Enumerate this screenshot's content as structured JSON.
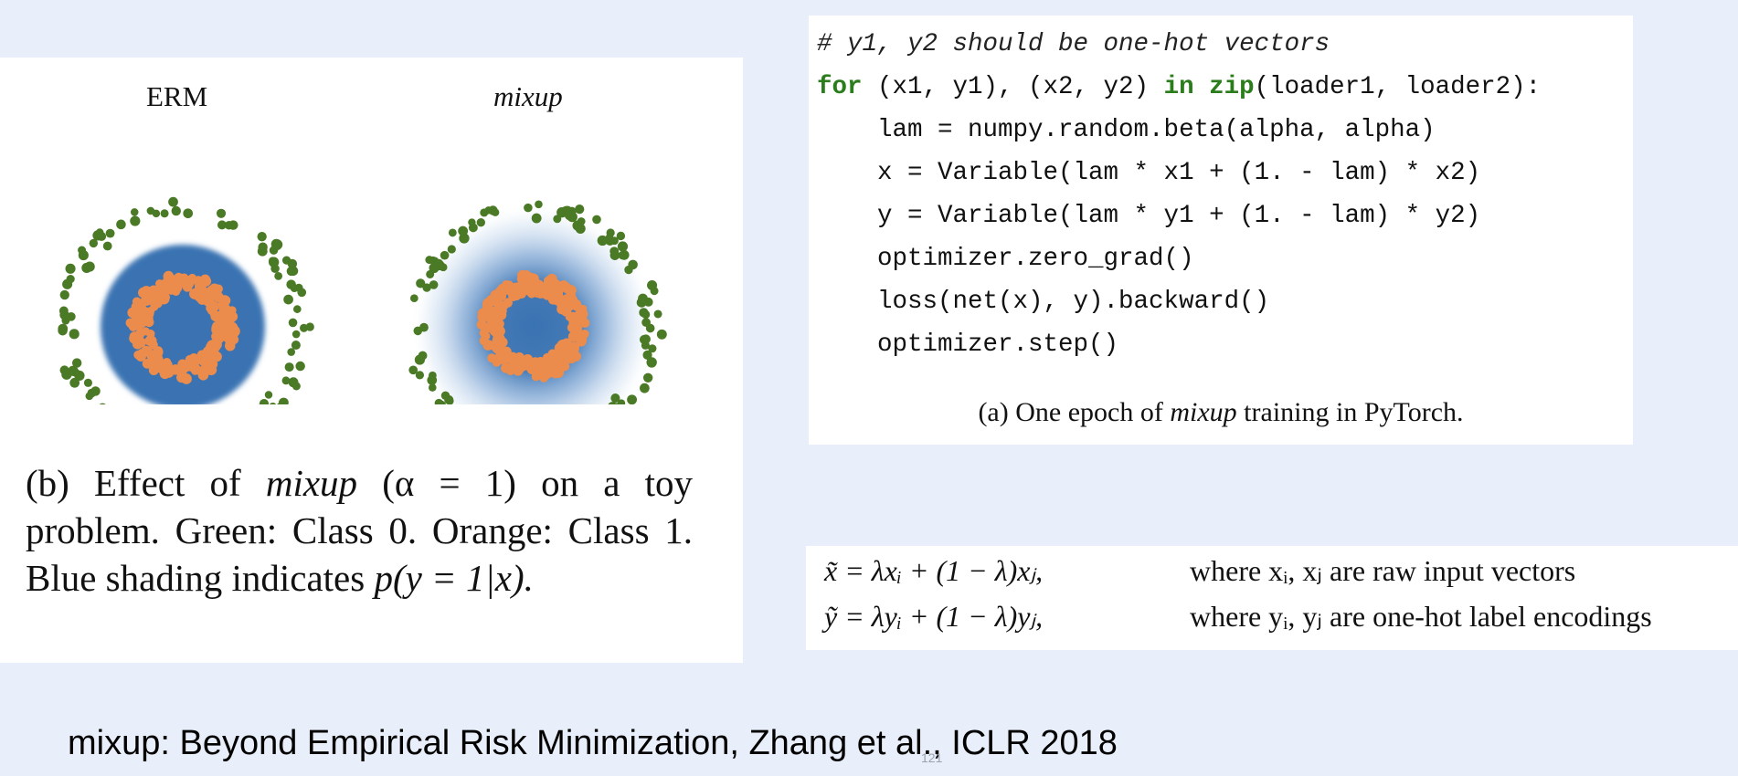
{
  "figure_b": {
    "erm_title": "ERM",
    "mixup_title": "mixup",
    "caption": {
      "prefix": "(b) Effect of ",
      "mixup_word": "mixup",
      "rest": " (α = 1) on a toy problem. Green: Class 0. Orange: Class 1. Blue shading indicates ",
      "formula": "p(y = 1|x).",
      "tail": ""
    },
    "colors": {
      "class0": "#4a7a25",
      "class1": "#ec8c4c",
      "shading": "#3a73b2"
    }
  },
  "code_block": {
    "lines": [
      "# y1, y2 should be one-hot vectors",
      "for (x1, y1), (x2, y2) in zip(loader1, loader2):",
      "    lam = numpy.random.beta(alpha, alpha)",
      "    x = Variable(lam * x1 + (1. - lam) * x2)",
      "    y = Variable(lam * y1 + (1. - lam) * y2)",
      "    optimizer.zero_grad()",
      "    loss(net(x), y).backward()",
      "    optimizer.step()"
    ],
    "caption_prefix": "(a) One epoch of ",
    "caption_mixup": "mixup",
    "caption_suffix": " training in PyTorch."
  },
  "equations": {
    "eq1_lhs": "x̃ = λxᵢ + (1 − λ)xⱼ,",
    "eq1_rhs": "where xᵢ, xⱼ are raw input vectors",
    "eq2_lhs": "ỹ = λyᵢ + (1 − λ)yⱼ,",
    "eq2_rhs": "where yᵢ, yⱼ are one-hot label encodings"
  },
  "citation": "mixup: Beyond Empirical Risk Minimization, Zhang et al., ICLR 2018",
  "page_number": "121"
}
